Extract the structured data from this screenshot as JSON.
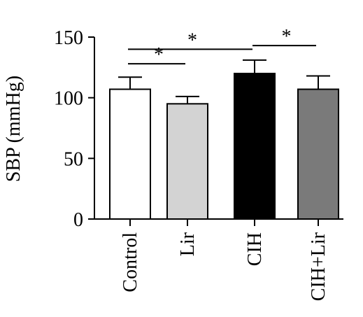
{
  "chart_data": {
    "type": "bar",
    "title": "",
    "xlabel": "",
    "ylabel": "SBP (mmHg)",
    "ylim": [
      0,
      150
    ],
    "yticks": [
      0,
      50,
      100,
      150
    ],
    "categories": [
      "Control",
      "Lir",
      "CIH",
      "CIH+Lir"
    ],
    "values": [
      107,
      95,
      120,
      107
    ],
    "errors": [
      10,
      6,
      11,
      11
    ],
    "fill_colors": [
      "#ffffff",
      "#d3d3d3",
      "#000000",
      "#7a7a7a"
    ],
    "grid": false,
    "legend": "none",
    "significance": [
      {
        "from": "Control",
        "to": "CIH",
        "label": "*"
      },
      {
        "from": "Control",
        "to": "Lir",
        "label": "*"
      },
      {
        "from": "CIH",
        "to": "CIH+Lir",
        "label": "*"
      }
    ]
  }
}
